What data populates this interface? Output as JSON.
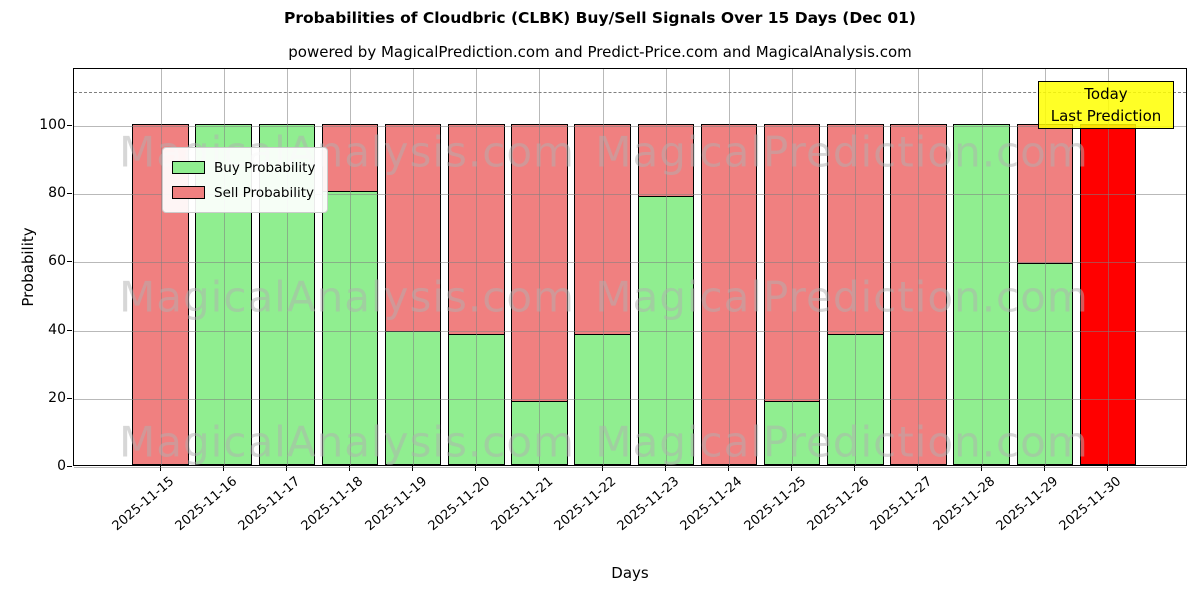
{
  "figure": {
    "title": "Probabilities of Cloudbric (CLBK) Buy/Sell Signals Over 15 Days (Dec 01)",
    "subtitle": "powered by MagicalPrediction.com and Predict-Price.com and MagicalAnalysis.com"
  },
  "chart_data": {
    "type": "bar",
    "stacked": true,
    "title": "Probabilities of Cloudbric (CLBK) Buy/Sell Signals Over 15 Days (Dec 01)",
    "subtitle": "powered by MagicalPrediction.com and Predict-Price.com and MagicalAnalysis.com",
    "xlabel": "Days",
    "ylabel": "Probability",
    "ylim": [
      0,
      116.7
    ],
    "yticks": [
      0,
      20,
      40,
      60,
      80,
      100
    ],
    "grid": true,
    "dashed_line_y": 110,
    "legend_position": "upper left",
    "categories": [
      "2025-11-15",
      "2025-11-16",
      "2025-11-17",
      "2025-11-18",
      "2025-11-19",
      "2025-11-20",
      "2025-11-21",
      "2025-11-22",
      "2025-11-23",
      "2025-11-24",
      "2025-11-25",
      "2025-11-26",
      "2025-11-27",
      "2025-11-28",
      "2025-11-29",
      "2025-11-30"
    ],
    "series": [
      {
        "name": "Buy Probability",
        "color": "#90EE90",
        "values": [
          0,
          100,
          100,
          80.5,
          39.5,
          38.5,
          19,
          38.5,
          79,
          0,
          19,
          38.5,
          0,
          100,
          59.5,
          0
        ]
      },
      {
        "name": "Sell Probability",
        "color": "#F08080",
        "values": [
          100,
          0,
          0,
          19.5,
          60.5,
          61.5,
          81,
          61.5,
          21,
          100,
          81,
          61.5,
          100,
          0,
          40.5,
          0
        ]
      }
    ],
    "today_bar": {
      "index": 15,
      "value": 100,
      "color": "#ff0000"
    },
    "annotation": {
      "line1": "Today",
      "line2": "Last Prediction",
      "bg_color": "#ffff00"
    },
    "watermarks": {
      "left": "MagicalAnalysis.com",
      "right": "MagicalPrediction.com"
    },
    "bar_edge_color": "#000000"
  }
}
